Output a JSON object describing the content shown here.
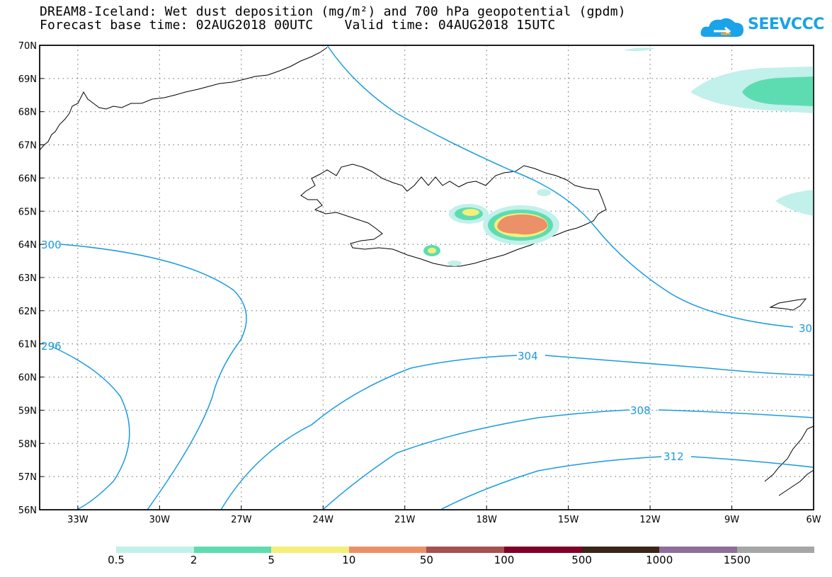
{
  "title": {
    "line1": "DREAM8-Iceland: Wet dust deposition (mg/m²) and 700 hPa geopotential (gpdm)",
    "line2": "Forecast base time: 02AUG2018 00UTC    Valid time: 04AUG2018 15UTC"
  },
  "logo": {
    "text": "SEEVCCC",
    "icon": "cloud-icon",
    "color": "#1aa3e8"
  },
  "map": {
    "lat_range": [
      56,
      70
    ],
    "lon_range": [
      -34.4,
      -6
    ],
    "lat_labels": [
      "56N",
      "57N",
      "58N",
      "59N",
      "60N",
      "61N",
      "62N",
      "63N",
      "64N",
      "65N",
      "66N",
      "67N",
      "68N",
      "69N",
      "70N"
    ],
    "lon_labels": [
      "33W",
      "30W",
      "27W",
      "24W",
      "21W",
      "18W",
      "15W",
      "12W",
      "9W",
      "6W"
    ],
    "grid": "dotted",
    "contour_color": "#1a9be0",
    "contour_labels": [
      "300",
      "296",
      "30",
      "304",
      "308",
      "312"
    ]
  },
  "legend": {
    "colors": [
      "#c2f0ea",
      "#5edcb1",
      "#f5ef7a",
      "#eb9068",
      "#a75050",
      "#800028",
      "#3b2419",
      "#8e6e9a",
      "#a6a6a6"
    ],
    "labels": [
      "0.5",
      "2",
      "5",
      "10",
      "50",
      "100",
      "500",
      "1000",
      "1500"
    ]
  }
}
